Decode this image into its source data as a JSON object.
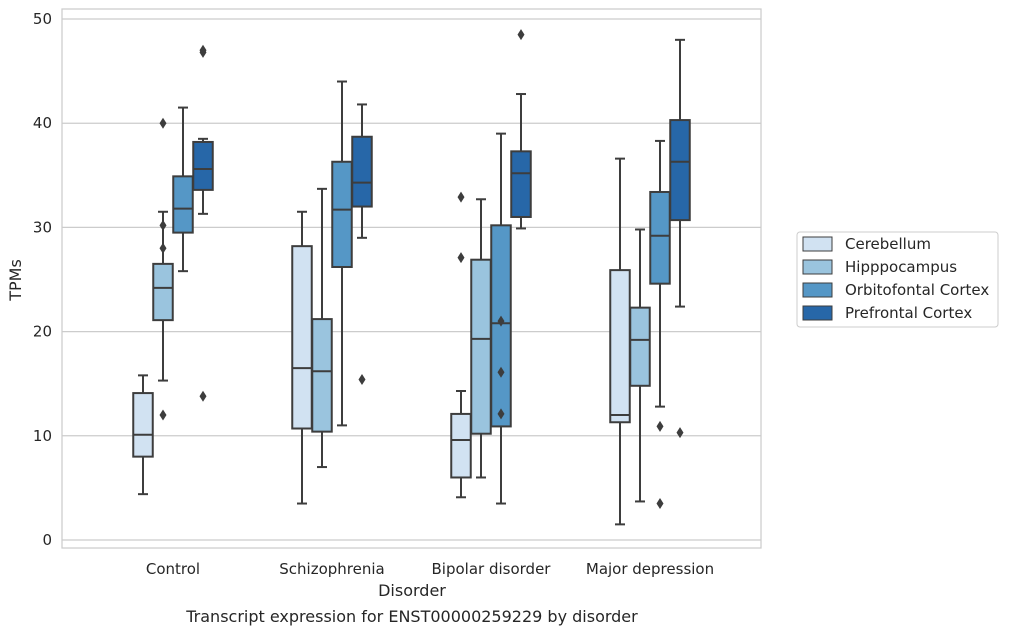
{
  "chart_data": {
    "type": "box",
    "title": "",
    "caption": "Transcript expression for ENST00000259229 by disorder",
    "xlabel": "Disorder",
    "ylabel": "TPMs",
    "ylim": [
      -0.8,
      51
    ],
    "yticks": [
      0,
      10,
      20,
      30,
      40,
      50
    ],
    "grid": "horizontal",
    "legend_position": "right",
    "categories": [
      "Control",
      "Schizophrenia",
      "Bipolar disorder",
      "Major depression"
    ],
    "series": [
      {
        "name": "Cerebellum",
        "color": "#d1e2f2",
        "boxes": [
          {
            "whisker_low": 4.4,
            "q1": 8.0,
            "median": 10.1,
            "q3": 14.1,
            "whisker_high": 15.8,
            "outliers": []
          },
          {
            "whisker_low": 3.5,
            "q1": 10.7,
            "median": 16.5,
            "q3": 28.2,
            "whisker_high": 31.5,
            "outliers": []
          },
          {
            "whisker_low": 4.1,
            "q1": 6.0,
            "median": 9.6,
            "q3": 12.1,
            "whisker_high": 14.3,
            "outliers": [
              27.1,
              32.9
            ]
          },
          {
            "whisker_low": 1.5,
            "q1": 11.3,
            "median": 12.0,
            "q3": 25.9,
            "whisker_high": 36.6,
            "outliers": []
          }
        ]
      },
      {
        "name": "Hipppocampus",
        "color": "#9ac4de",
        "boxes": [
          {
            "whisker_low": 15.3,
            "q1": 21.1,
            "median": 24.2,
            "q3": 26.5,
            "whisker_high": 31.5,
            "outliers": [
              12.0,
              28.0,
              30.2,
              40.0
            ]
          },
          {
            "whisker_low": 7.0,
            "q1": 10.4,
            "median": 16.2,
            "q3": 21.2,
            "whisker_high": 33.7,
            "outliers": []
          },
          {
            "whisker_low": 6.0,
            "q1": 10.2,
            "median": 19.3,
            "q3": 26.9,
            "whisker_high": 32.7,
            "outliers": []
          },
          {
            "whisker_low": 3.7,
            "q1": 14.8,
            "median": 19.2,
            "q3": 22.3,
            "whisker_high": 29.8,
            "outliers": []
          }
        ]
      },
      {
        "name": "Orbitofontal Cortex",
        "color": "#5597c6",
        "boxes": [
          {
            "whisker_low": 25.8,
            "q1": 29.5,
            "median": 31.8,
            "q3": 34.9,
            "whisker_high": 41.5,
            "outliers": []
          },
          {
            "whisker_low": 11.0,
            "q1": 26.2,
            "median": 31.7,
            "q3": 36.3,
            "whisker_high": 44.0,
            "outliers": []
          },
          {
            "whisker_low": 3.5,
            "q1": 10.9,
            "median": 20.8,
            "q3": 30.2,
            "whisker_high": 39.0,
            "outliers": [
              12.1,
              16.1,
              21.0
            ]
          },
          {
            "whisker_low": 12.8,
            "q1": 24.6,
            "median": 29.2,
            "q3": 33.4,
            "whisker_high": 38.3,
            "outliers": [
              3.5,
              10.9
            ]
          }
        ]
      },
      {
        "name": "Prefrontal Cortex",
        "color": "#2767a8",
        "boxes": [
          {
            "whisker_low": 31.3,
            "q1": 33.6,
            "median": 35.6,
            "q3": 38.2,
            "whisker_high": 38.5,
            "outliers": [
              13.8,
              46.8,
              47.0
            ]
          },
          {
            "whisker_low": 29.0,
            "q1": 32.0,
            "median": 34.3,
            "q3": 38.7,
            "whisker_high": 41.8,
            "outliers": [
              15.4
            ]
          },
          {
            "whisker_low": 29.9,
            "q1": 31.0,
            "median": 35.2,
            "q3": 37.3,
            "whisker_high": 42.8,
            "outliers": [
              48.5
            ]
          },
          {
            "whisker_low": 22.4,
            "q1": 30.7,
            "median": 36.3,
            "q3": 40.3,
            "whisker_high": 48.0,
            "outliers": [
              10.3
            ]
          }
        ]
      }
    ]
  }
}
